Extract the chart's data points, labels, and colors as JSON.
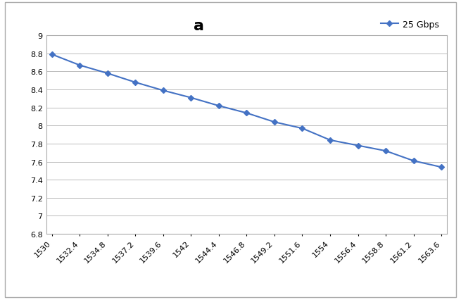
{
  "x": [
    1530,
    1532.4,
    1534.8,
    1537.2,
    1539.6,
    1542,
    1544.4,
    1546.8,
    1549.2,
    1551.6,
    1554,
    1556.4,
    1558.8,
    1561.2,
    1563.6
  ],
  "y": [
    8.79,
    8.67,
    8.58,
    8.48,
    8.39,
    8.31,
    8.22,
    8.14,
    8.04,
    7.97,
    7.84,
    7.78,
    7.72,
    7.61,
    7.54
  ],
  "line_color": "#4472C4",
  "marker": "D",
  "marker_size": 4,
  "line_width": 1.5,
  "title": "a",
  "title_fontsize": 16,
  "title_fontweight": "bold",
  "legend_label": "25 Gbps",
  "ylim": [
    6.8,
    9.0
  ],
  "yticks": [
    6.8,
    7.0,
    7.2,
    7.4,
    7.6,
    7.8,
    8.0,
    8.2,
    8.4,
    8.6,
    8.8,
    9.0
  ],
  "xtick_labels": [
    "1530",
    "1532.4",
    "1534.8",
    "1537.2",
    "1539.6",
    "1542",
    "1544.4",
    "1546.8",
    "1549.2",
    "1551.6",
    "1554",
    "1556.4",
    "1558.8",
    "1561.2",
    "1563.6"
  ],
  "grid_color": "#BBBBBB",
  "grid_linewidth": 0.7,
  "background_color": "#FFFFFF",
  "tick_fontsize": 8,
  "legend_fontsize": 9,
  "border_color": "#AAAAAA"
}
